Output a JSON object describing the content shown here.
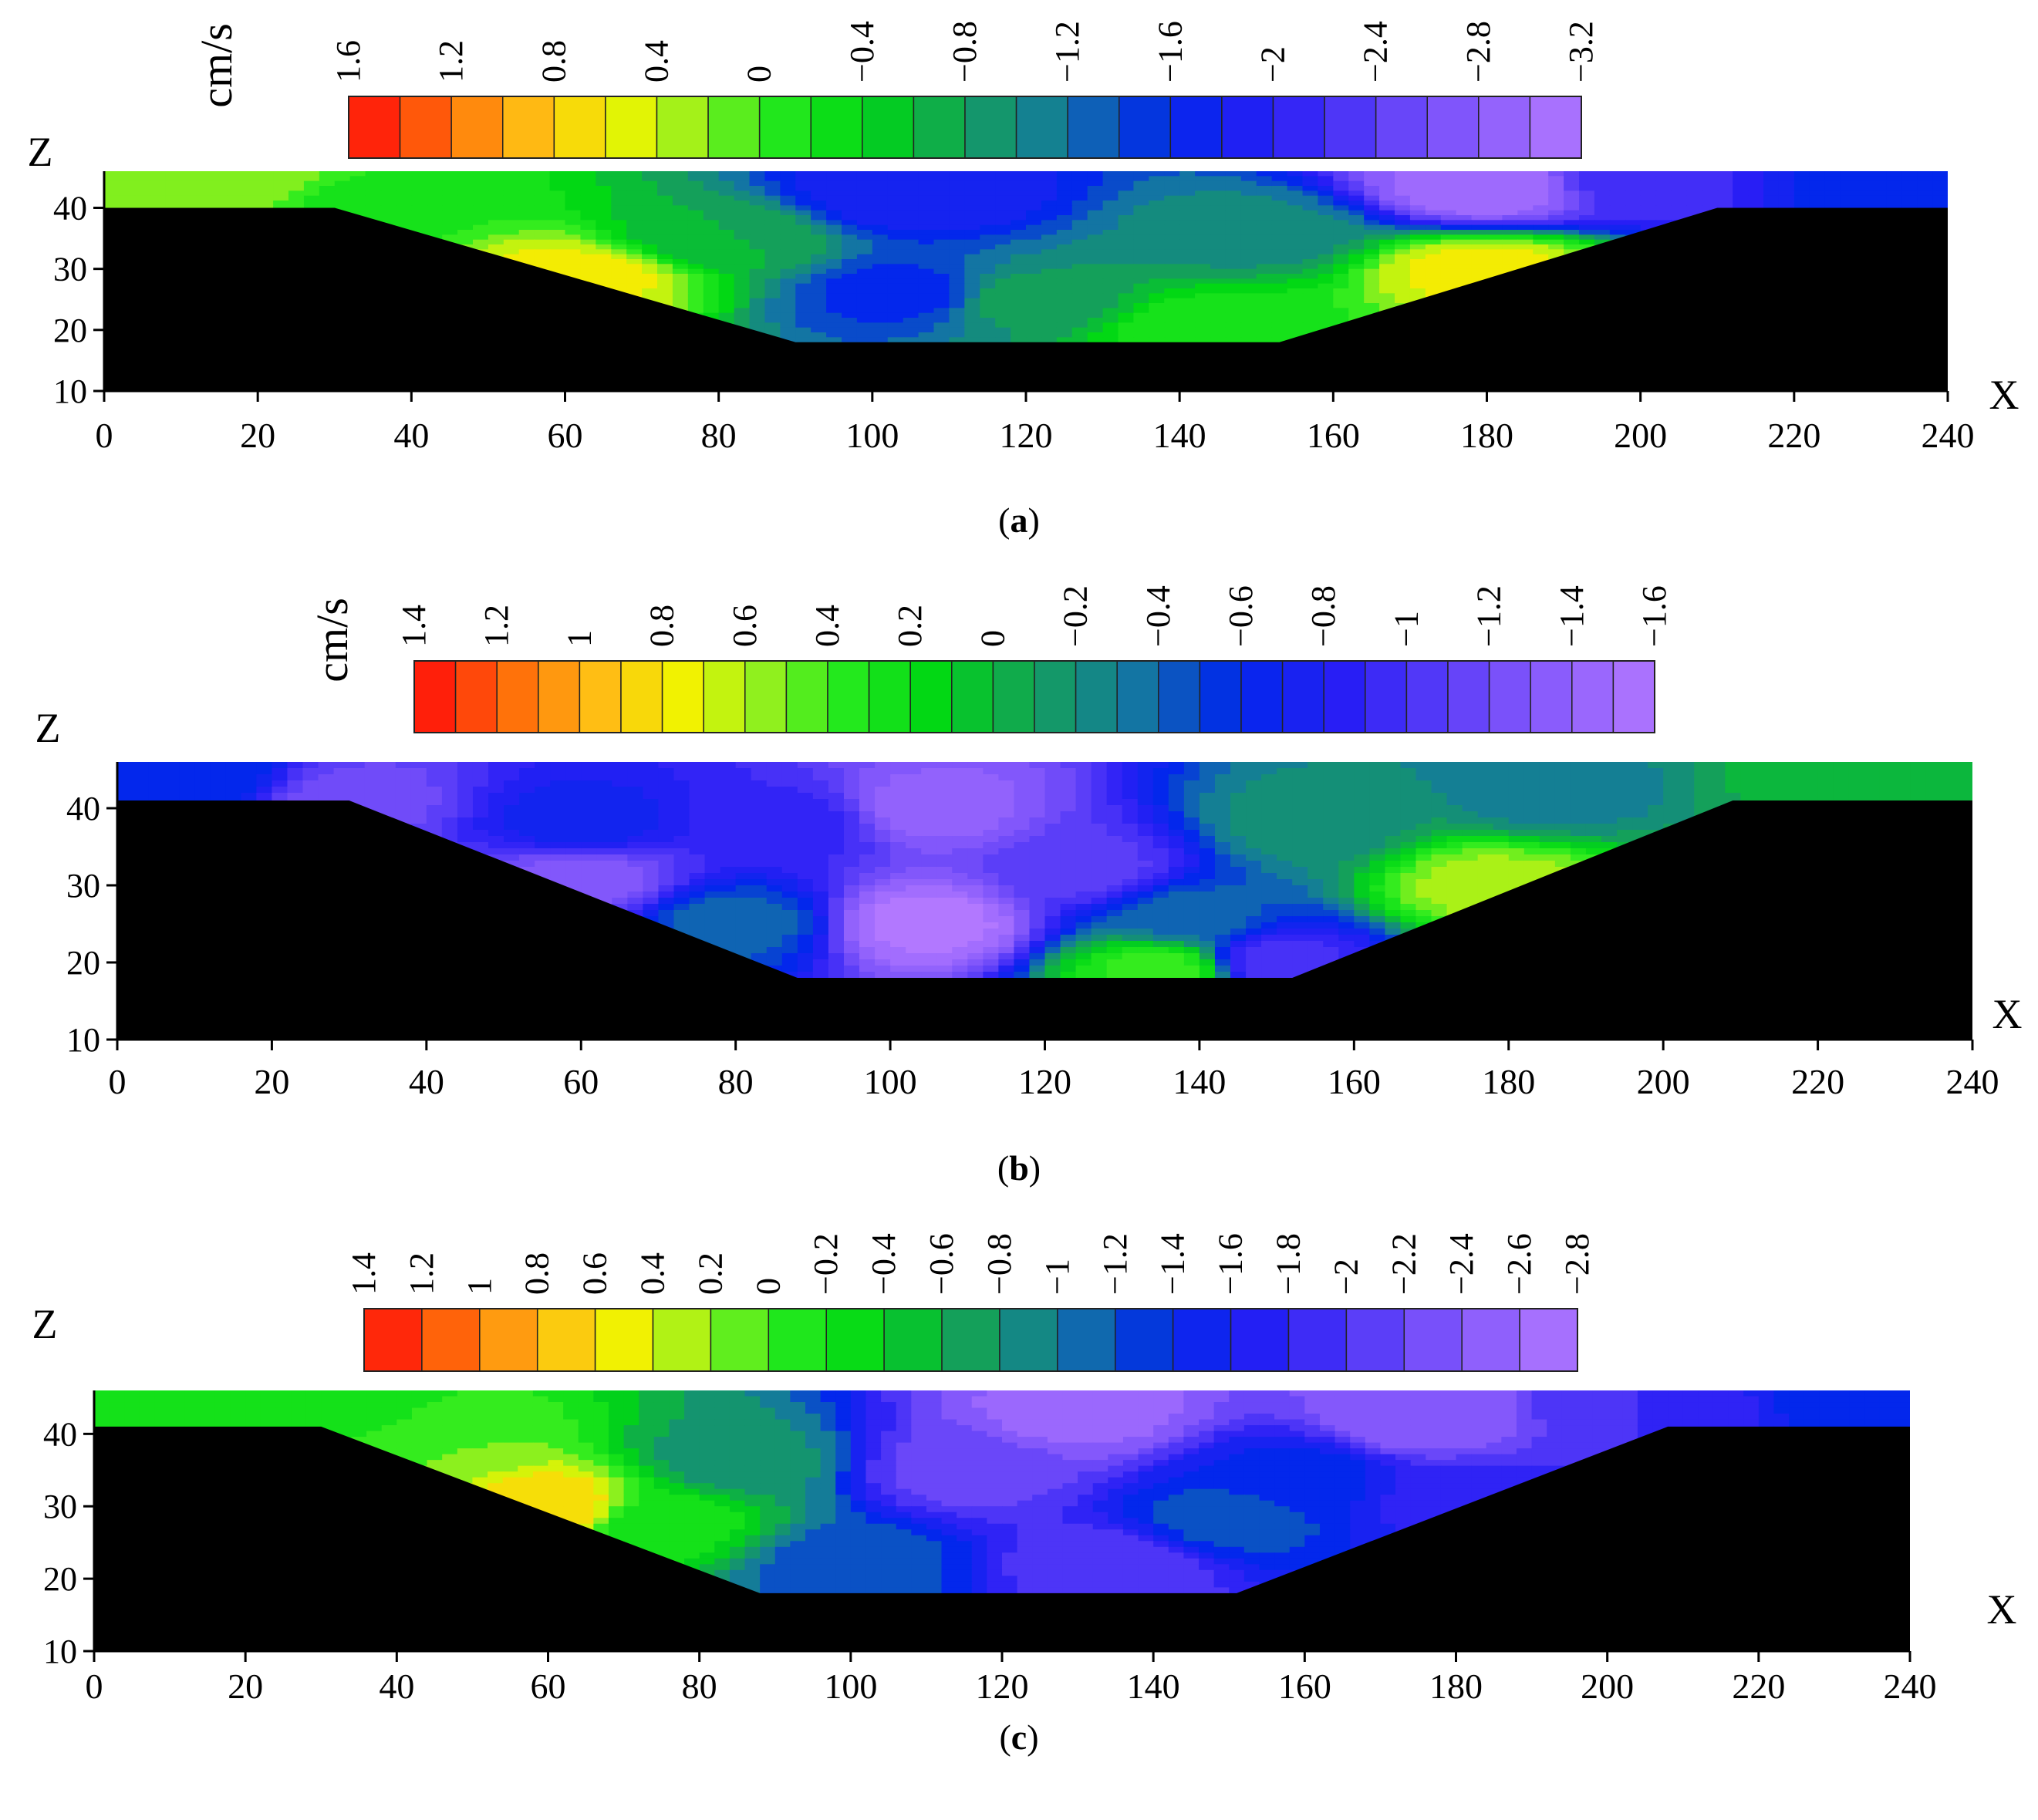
{
  "figure": {
    "panels": [
      {
        "label": "a",
        "unit": "cm/s",
        "x_axis_letter": "X",
        "z_axis_letter": "Z",
        "colorbar_ticks": [
          "1.6",
          "1.2",
          "0.8",
          "0.4",
          "0",
          "−0.4",
          "−0.8",
          "−1.2",
          "−1.6",
          "−2",
          "−2.4",
          "−2.8",
          "−3.2"
        ]
      },
      {
        "label": "b",
        "unit": "cm/s",
        "x_axis_letter": "X",
        "z_axis_letter": "Z",
        "colorbar_ticks": [
          "1.4",
          "1.2",
          "1",
          "0.8",
          "0.6",
          "0.4",
          "0.2",
          "0",
          "−0.2",
          "−0.4",
          "−0.6",
          "−0.8",
          "−1",
          "−1.2",
          "−1.4",
          "−1.6"
        ]
      },
      {
        "label": "c",
        "unit": "",
        "x_axis_letter": "X",
        "z_axis_letter": "Z",
        "colorbar_ticks": [
          "1.4",
          "1.2",
          "1",
          "0.8",
          "0.6",
          "0.4",
          "0.2",
          "0",
          "−0.2",
          "−0.4",
          "−0.6",
          "−0.8",
          "−1",
          "−1.2",
          "−1.4",
          "−1.6",
          "−1.8",
          "−2",
          "−2.2",
          "−2.4",
          "−2.6",
          "−2.8"
        ]
      }
    ]
  },
  "chart_data": [
    {
      "type": "heatmap",
      "panel": "a",
      "xlabel": "X",
      "ylabel": "Z",
      "xlim": [
        0,
        240
      ],
      "ylim": [
        10,
        46
      ],
      "x_ticks": [
        0,
        20,
        40,
        60,
        80,
        100,
        120,
        140,
        160,
        180,
        200,
        220,
        240
      ],
      "z_ticks": [
        10,
        20,
        30,
        40
      ],
      "colorbar": {
        "unit": "cm/s",
        "min": -3.2,
        "max": 1.6,
        "step": 0.2,
        "ticks": [
          1.6,
          1.2,
          0.8,
          0.4,
          0,
          -0.4,
          -0.8,
          -1.2,
          -1.6,
          -2,
          -2.4,
          -2.8,
          -3.2
        ]
      },
      "bed_profile": [
        [
          0,
          40
        ],
        [
          30,
          40
        ],
        [
          90,
          18
        ],
        [
          153,
          18
        ],
        [
          210,
          40
        ],
        [
          240,
          40
        ]
      ],
      "water_surface": 46,
      "field_centers": [
        {
          "x": 15,
          "z": 44,
          "value": 0.3
        },
        {
          "x": 35,
          "z": 40,
          "value": -0.2
        },
        {
          "x": 62,
          "z": 29,
          "value": 0.6
        },
        {
          "x": 80,
          "z": 35,
          "value": -0.7
        },
        {
          "x": 105,
          "z": 42,
          "value": -1.9
        },
        {
          "x": 105,
          "z": 26,
          "value": -1.6
        },
        {
          "x": 120,
          "z": 25,
          "value": -0.8
        },
        {
          "x": 145,
          "z": 20,
          "value": -0.1
        },
        {
          "x": 150,
          "z": 36,
          "value": -1.0
        },
        {
          "x": 180,
          "z": 43,
          "value": -3.1
        },
        {
          "x": 180,
          "z": 30,
          "value": 0.6
        },
        {
          "x": 200,
          "z": 44,
          "value": -2.2
        },
        {
          "x": 232,
          "z": 44,
          "value": -1.6
        }
      ]
    },
    {
      "type": "heatmap",
      "panel": "b",
      "xlabel": "X",
      "ylabel": "Z",
      "xlim": [
        0,
        240
      ],
      "ylim": [
        10,
        46
      ],
      "x_ticks": [
        0,
        20,
        40,
        60,
        80,
        100,
        120,
        140,
        160,
        180,
        200,
        220,
        240
      ],
      "z_ticks": [
        10,
        20,
        30,
        40
      ],
      "colorbar": {
        "unit": "cm/s",
        "min": -1.6,
        "max": 1.4,
        "step": 0.1,
        "ticks": [
          1.4,
          1.2,
          1,
          0.8,
          0.6,
          0.4,
          0.2,
          0,
          -0.2,
          -0.4,
          -0.6,
          -0.8,
          -1,
          -1.2,
          -1.4,
          -1.6
        ]
      },
      "bed_profile": [
        [
          0,
          41
        ],
        [
          30,
          41
        ],
        [
          88,
          18
        ],
        [
          152,
          18
        ],
        [
          209,
          41
        ],
        [
          240,
          41
        ]
      ],
      "water_surface": 46,
      "field_centers": [
        {
          "x": 10,
          "z": 44,
          "value": -0.55
        },
        {
          "x": 30,
          "z": 41,
          "value": -1.2
        },
        {
          "x": 60,
          "z": 31,
          "value": -1.3
        },
        {
          "x": 60,
          "z": 38,
          "value": -0.7
        },
        {
          "x": 80,
          "z": 25,
          "value": -0.4
        },
        {
          "x": 88,
          "z": 38,
          "value": -0.9
        },
        {
          "x": 105,
          "z": 25,
          "value": -1.6
        },
        {
          "x": 105,
          "z": 40,
          "value": -1.4
        },
        {
          "x": 125,
          "z": 32,
          "value": -1.1
        },
        {
          "x": 138,
          "z": 26,
          "value": -0.4
        },
        {
          "x": 135,
          "z": 19,
          "value": 0.4
        },
        {
          "x": 150,
          "z": 20,
          "value": -1.0
        },
        {
          "x": 155,
          "z": 38,
          "value": -0.2
        },
        {
          "x": 178,
          "z": 30,
          "value": 0.6
        },
        {
          "x": 185,
          "z": 42,
          "value": -0.3
        },
        {
          "x": 225,
          "z": 44,
          "value": 0.0
        }
      ]
    },
    {
      "type": "heatmap",
      "panel": "c",
      "xlabel": "X",
      "ylabel": "Z",
      "xlim": [
        0,
        240
      ],
      "ylim": [
        10,
        46
      ],
      "x_ticks": [
        0,
        20,
        40,
        60,
        80,
        100,
        120,
        140,
        160,
        180,
        200,
        220,
        240
      ],
      "z_ticks": [
        10,
        20,
        30,
        40
      ],
      "colorbar": {
        "unit": "",
        "min": -2.8,
        "max": 1.4,
        "step": 0.2,
        "ticks": [
          1.4,
          1.2,
          1,
          0.8,
          0.6,
          0.4,
          0.2,
          0,
          -0.2,
          -0.4,
          -0.6,
          -0.8,
          -1,
          -1.2,
          -1.4,
          -1.6,
          -1.8,
          -2,
          -2.2,
          -2.4,
          -2.6,
          -2.8
        ]
      },
      "bed_profile": [
        [
          0,
          41
        ],
        [
          30,
          41
        ],
        [
          88,
          18
        ],
        [
          151,
          18
        ],
        [
          208,
          41
        ],
        [
          240,
          41
        ]
      ],
      "water_surface": 46,
      "field_centers": [
        {
          "x": 10,
          "z": 44,
          "value": -0.1
        },
        {
          "x": 30,
          "z": 43,
          "value": -0.3
        },
        {
          "x": 45,
          "z": 38,
          "value": 0.1
        },
        {
          "x": 60,
          "z": 30,
          "value": 0.7
        },
        {
          "x": 75,
          "z": 28,
          "value": -0.2
        },
        {
          "x": 85,
          "z": 36,
          "value": -0.8
        },
        {
          "x": 100,
          "z": 22,
          "value": -1.2
        },
        {
          "x": 115,
          "z": 35,
          "value": -2.2
        },
        {
          "x": 130,
          "z": 43,
          "value": -2.6
        },
        {
          "x": 135,
          "z": 22,
          "value": -2.1
        },
        {
          "x": 150,
          "z": 28,
          "value": -1.2
        },
        {
          "x": 160,
          "z": 34,
          "value": -1.4
        },
        {
          "x": 175,
          "z": 42,
          "value": -2.5
        },
        {
          "x": 180,
          "z": 31,
          "value": -1.8
        },
        {
          "x": 205,
          "z": 43,
          "value": -1.9
        },
        {
          "x": 235,
          "z": 44,
          "value": -1.4
        }
      ]
    }
  ]
}
